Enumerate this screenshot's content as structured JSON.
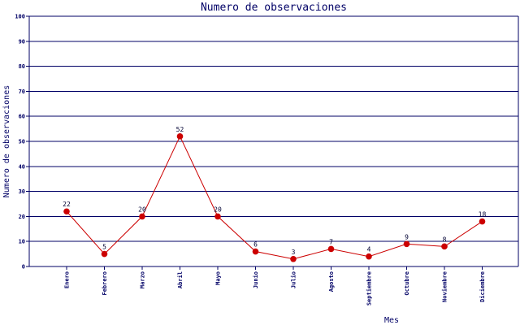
{
  "chart_data": {
    "type": "line",
    "title": "Numero de observaciones",
    "xlabel": "Mes",
    "ylabel": "Numero de observaciones",
    "categories": [
      "Enero",
      "Febrero",
      "Marzo",
      "Abril",
      "Mayo",
      "Junio",
      "Julio",
      "Agosto",
      "Septiembre",
      "Octubre",
      "Noviembre",
      "Diciembre"
    ],
    "values": [
      22,
      5,
      20,
      52,
      20,
      6,
      3,
      7,
      4,
      9,
      8,
      18
    ],
    "value_labels": [
      "22",
      "5",
      "20",
      "52",
      "20",
      "6",
      "3",
      "7",
      "4",
      "9",
      "8",
      "18"
    ],
    "ylim": [
      0,
      100
    ],
    "yticks": [
      "0",
      "10",
      "20",
      "30",
      "40",
      "50",
      "60",
      "70",
      "80",
      "90",
      "100"
    ],
    "grid": true,
    "legend": "none",
    "colors": {
      "line": "#cc0000",
      "marker": "#cc0000",
      "grid": "#000066",
      "axis": "#000066",
      "text": "#000066",
      "point_label": "#000033"
    }
  }
}
